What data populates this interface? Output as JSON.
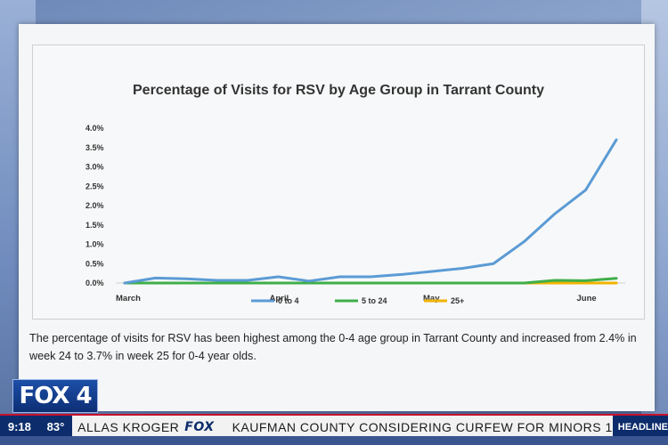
{
  "chart_data": {
    "type": "line",
    "title": "Percentage of Visits for RSV by Age Group in Tarrant County",
    "xlabel": "",
    "ylabel": "",
    "x_tick_labels": [
      "March",
      "April",
      "May",
      "June"
    ],
    "y_tick_labels": [
      "0.0%",
      "0.5%",
      "1.0%",
      "1.5%",
      "2.0%",
      "2.5%",
      "3.0%",
      "3.5%",
      "4.0%"
    ],
    "ylim": [
      0,
      4.0
    ],
    "legend_position": "bottom",
    "grid": false,
    "series": [
      {
        "name": "0 to 4",
        "color": "#5b9bd5",
        "values": [
          0.0,
          0.13,
          0.11,
          0.07,
          0.07,
          0.16,
          0.05,
          0.16,
          0.16,
          0.22,
          0.3,
          0.38,
          0.5,
          1.07,
          1.79,
          2.4,
          3.7
        ]
      },
      {
        "name": "5 to 24",
        "color": "#3fae49",
        "values": [
          0.0,
          0.0,
          0.0,
          0.0,
          0.0,
          0.0,
          0.0,
          0.0,
          0.0,
          0.0,
          0.0,
          0.0,
          0.0,
          0.0,
          0.07,
          0.06,
          0.12
        ]
      },
      {
        "name": "25+",
        "color": "#f0b400",
        "values": [
          0.0,
          0.0,
          0.0,
          0.0,
          0.0,
          0.0,
          0.0,
          0.0,
          0.0,
          0.0,
          0.0,
          0.0,
          0.0,
          0.0,
          0.0,
          0.0,
          0.0
        ]
      }
    ]
  },
  "caption": "The percentage of visits for RSV has been highest among the 0-4 age group in Tarrant County and increased from  2.4% in week 24 to 3.7% in week 25 for 0-4 year olds.",
  "broadcast": {
    "logo": "FOX 4",
    "time": "9:18",
    "temperature": "83°",
    "crawl_left": "ALLAS KROGER",
    "crawl_fox": "FOX",
    "crawl_main": "KAUFMAN COUNTY CONSIDERING CURFEW FOR MINORS 1",
    "headlines": "HEADLINE"
  }
}
